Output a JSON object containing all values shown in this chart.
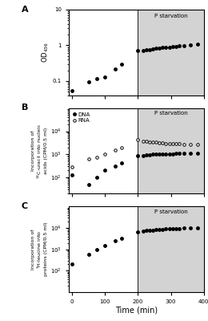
{
  "panel_A": {
    "label": "A",
    "ylabel": "OD$_{436}$",
    "ylim": [
      0.04,
      10
    ],
    "pre_x": [
      0,
      50,
      75,
      100,
      130,
      150
    ],
    "pre_y": [
      0.055,
      0.095,
      0.115,
      0.13,
      0.22,
      0.3
    ],
    "post_x": [
      200,
      215,
      225,
      235,
      245,
      255,
      265,
      275,
      285,
      295,
      305,
      315,
      325,
      340,
      360,
      380
    ],
    "post_y": [
      0.72,
      0.73,
      0.75,
      0.77,
      0.8,
      0.82,
      0.84,
      0.86,
      0.88,
      0.9,
      0.92,
      0.94,
      0.96,
      0.99,
      1.02,
      1.1
    ]
  },
  "panel_B": {
    "label": "B",
    "ylabel": "Incorporation of\n$^{14}$C-uracil into nucleic\nacids (CPM/0.5 ml)",
    "ylim": [
      20,
      100000
    ],
    "dna_pre_x": [
      0,
      50,
      75,
      100,
      130,
      150
    ],
    "dna_pre_y": [
      130,
      50,
      100,
      200,
      320,
      420
    ],
    "dna_post_x": [
      200,
      215,
      225,
      235,
      245,
      255,
      265,
      275,
      285,
      295,
      305,
      315,
      325,
      340,
      360,
      380
    ],
    "dna_post_y": [
      850,
      900,
      950,
      980,
      1000,
      1020,
      1030,
      1040,
      1050,
      1060,
      1060,
      1070,
      1080,
      1090,
      1100,
      1100
    ],
    "rna_pre_x": [
      0,
      50,
      75,
      100,
      130,
      150
    ],
    "rna_pre_y": [
      280,
      650,
      750,
      1000,
      1500,
      2000
    ],
    "rna_post_x": [
      200,
      215,
      225,
      235,
      245,
      255,
      265,
      275,
      285,
      295,
      305,
      315,
      325,
      340,
      360,
      380
    ],
    "rna_post_y": [
      4500,
      3800,
      3600,
      3500,
      3400,
      3300,
      3200,
      3100,
      3000,
      2900,
      2800,
      2800,
      2800,
      2700,
      2700,
      2700
    ]
  },
  "panel_C": {
    "label": "C",
    "ylabel": "Incorporation of\n$^{3}$H-leucine into\nproteins (CPM/0.5 ml)",
    "ylim": [
      10,
      100000
    ],
    "pre_x": [
      0,
      50,
      75,
      100,
      130,
      150
    ],
    "pre_y": [
      200,
      600,
      1000,
      1500,
      2500,
      3200
    ],
    "post_x": [
      200,
      215,
      225,
      235,
      245,
      255,
      265,
      275,
      285,
      295,
      305,
      315,
      325,
      340,
      360,
      380
    ],
    "post_y": [
      6500,
      7000,
      7500,
      7800,
      8000,
      8200,
      8400,
      8600,
      8800,
      9000,
      9200,
      9400,
      9500,
      9700,
      10000,
      10000
    ]
  },
  "xlabel": "Time (min)",
  "starvation_start": 200,
  "xmax": 400,
  "xlim_left": -10,
  "background_color": "#d3d3d3",
  "marker_size": 2.5,
  "marker_color": "black",
  "pstarvation_text": "P starvation",
  "pstarvation_fontsize": 5,
  "label_fontsize": 8,
  "tick_fontsize": 5,
  "ylabel_fontsize_A": 6,
  "ylabel_fontsize_BC": 4.5,
  "xlabel_fontsize": 7
}
